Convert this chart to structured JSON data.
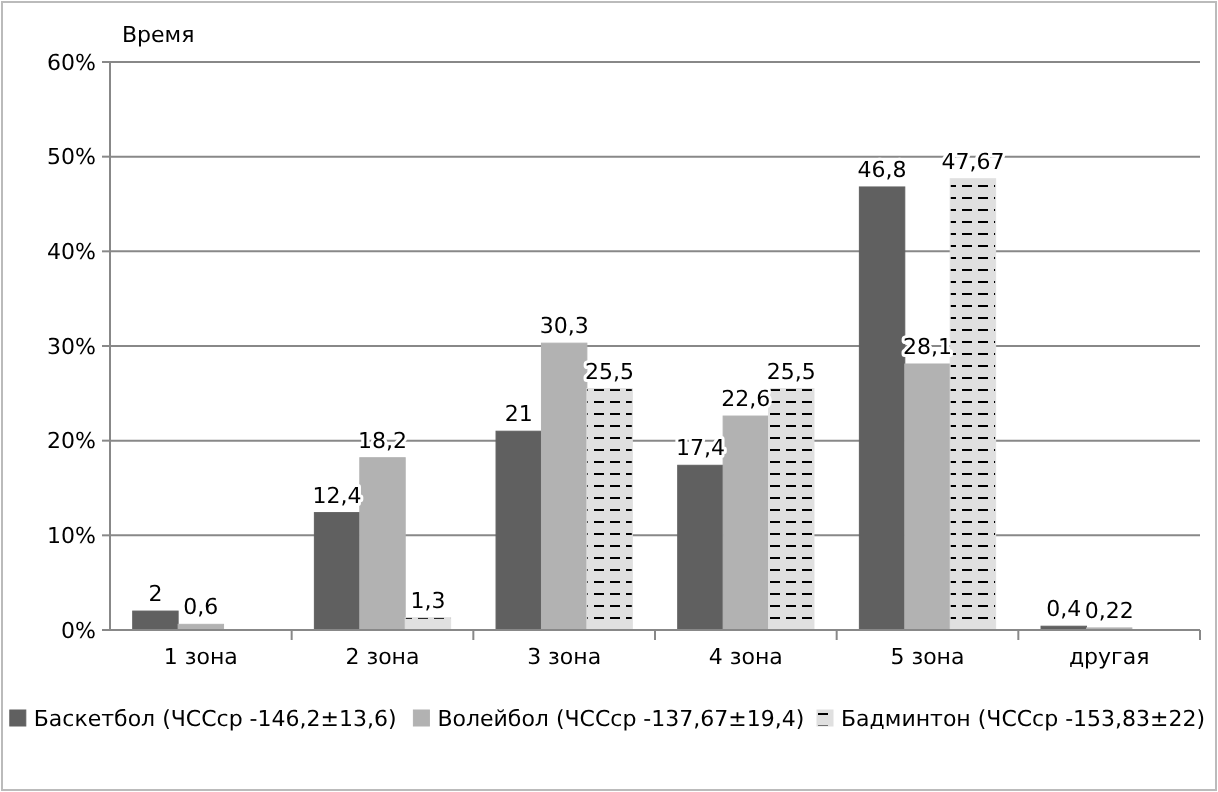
{
  "chart_data": {
    "type": "bar",
    "ylabel": "Время",
    "categories": [
      "1 зона",
      "2 зона",
      "3 зона",
      "4 зона",
      "5 зона",
      "другая"
    ],
    "series": [
      {
        "name": "Баскетбол (ЧССср -146,2±13,6)",
        "color": "#606060",
        "values": [
          2,
          12.4,
          21,
          17.4,
          46.8,
          0.4
        ],
        "value_labels": [
          "2",
          "12,4",
          "21",
          "17,4",
          "46,8",
          "0,4"
        ]
      },
      {
        "name": "Волейбол (ЧССср -137,67±19,4)",
        "color": "#b2b2b2",
        "values": [
          0.6,
          18.2,
          30.3,
          22.6,
          28.1,
          0.22
        ],
        "value_labels": [
          "0,6",
          "18,2",
          "30,3",
          "22,6",
          "28,1",
          "0,22"
        ]
      },
      {
        "name": "Бадминтон (ЧССср -153,83±22)",
        "color": "#e0e0e0",
        "values": [
          null,
          1.3,
          25.5,
          25.5,
          47.67,
          null
        ],
        "value_labels": [
          null,
          "1,3",
          "25,5",
          "25,5",
          "47,67",
          null
        ]
      }
    ],
    "ylim": [
      0,
      60
    ],
    "yticks": [
      {
        "value": 0,
        "label": "0%"
      },
      {
        "value": 10,
        "label": "10%"
      },
      {
        "value": 20,
        "label": "20%"
      },
      {
        "value": 30,
        "label": "30%"
      },
      {
        "value": 40,
        "label": "40%"
      },
      {
        "value": 50,
        "label": "50%"
      },
      {
        "value": 60,
        "label": "60%"
      }
    ],
    "grid": "y",
    "legend": "bottom"
  }
}
